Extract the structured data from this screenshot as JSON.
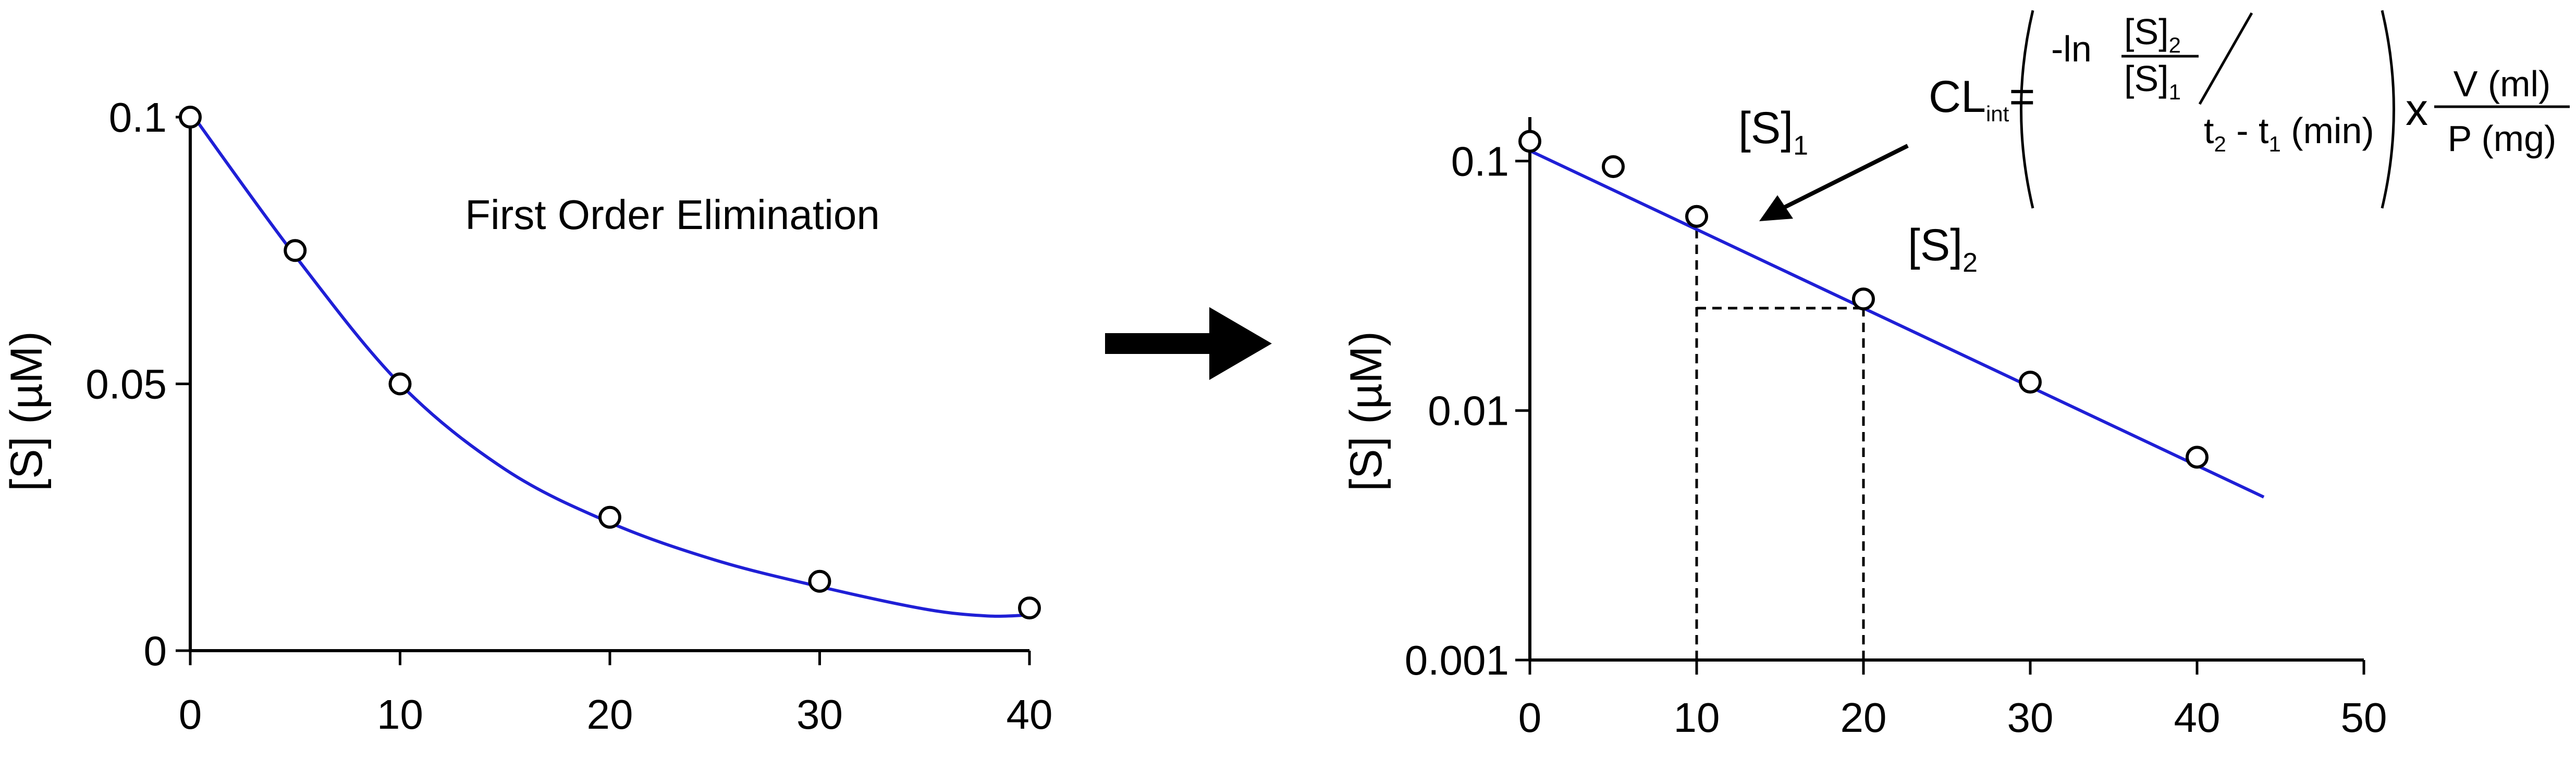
{
  "chart_data": [
    {
      "type": "scatter",
      "title": "First Order Elimination",
      "xlabel": "",
      "ylabel": "[S] (µM)",
      "xlim": [
        0,
        40
      ],
      "ylim": [
        0,
        0.1
      ],
      "yscale": "linear",
      "grid": false,
      "x_ticks": [
        "0",
        "10",
        "20",
        "30",
        "40"
      ],
      "y_ticks": [
        "0",
        "0.05",
        "0.1"
      ],
      "series": [
        {
          "x": [
            0,
            5,
            10,
            20,
            30,
            40
          ],
          "y": [
            0.1,
            0.075,
            0.05,
            0.025,
            0.013,
            0.008
          ]
        }
      ],
      "fit": {
        "type": "exponential-curve",
        "color": "#1f1fd6",
        "x": [
          0,
          5,
          10,
          15,
          20,
          25,
          30,
          35,
          38,
          40
        ],
        "y": [
          0.101,
          0.074,
          0.05,
          0.034,
          0.024,
          0.017,
          0.012,
          0.0078,
          0.0065,
          0.0067
        ]
      }
    },
    {
      "type": "scatter",
      "xlabel": "",
      "ylabel": "[S] (µM)",
      "xlim": [
        0,
        50
      ],
      "ylim": [
        0.001,
        0.15
      ],
      "yscale": "log",
      "grid": false,
      "x_ticks": [
        "0",
        "10",
        "20",
        "30",
        "40",
        "50"
      ],
      "y_ticks": [
        "0.001",
        "0.01",
        "0.1"
      ],
      "series": [
        {
          "x": [
            0,
            5,
            10,
            20,
            30,
            40
          ],
          "y": [
            0.12,
            0.095,
            0.06,
            0.028,
            0.013,
            0.0065
          ]
        }
      ],
      "fit": {
        "type": "line",
        "color": "#1f1fd6",
        "x": [
          0,
          44
        ],
        "y": [
          0.11,
          0.0045
        ]
      },
      "annotations": {
        "s1_main": "[S]",
        "s1_sub": "1",
        "s2_main": "[S]",
        "s2_sub": "2",
        "formula": {
          "cl": "CL",
          "cl_sub": "int",
          "equals": "=",
          "ln": "-ln",
          "num_main": "[S]",
          "num_sub": "2",
          "den_main": "[S]",
          "den_sub": "1",
          "t2": "t",
          "t2_sub": "2",
          "minus": " - t",
          "t1_sub": "1",
          "min": " (min)",
          "times": "x",
          "v": "V (ml)",
          "p": "P (mg)"
        },
        "guides": [
          {
            "x": 10,
            "y": 0.06
          },
          {
            "x": 20,
            "y": 0.028
          }
        ]
      }
    }
  ]
}
